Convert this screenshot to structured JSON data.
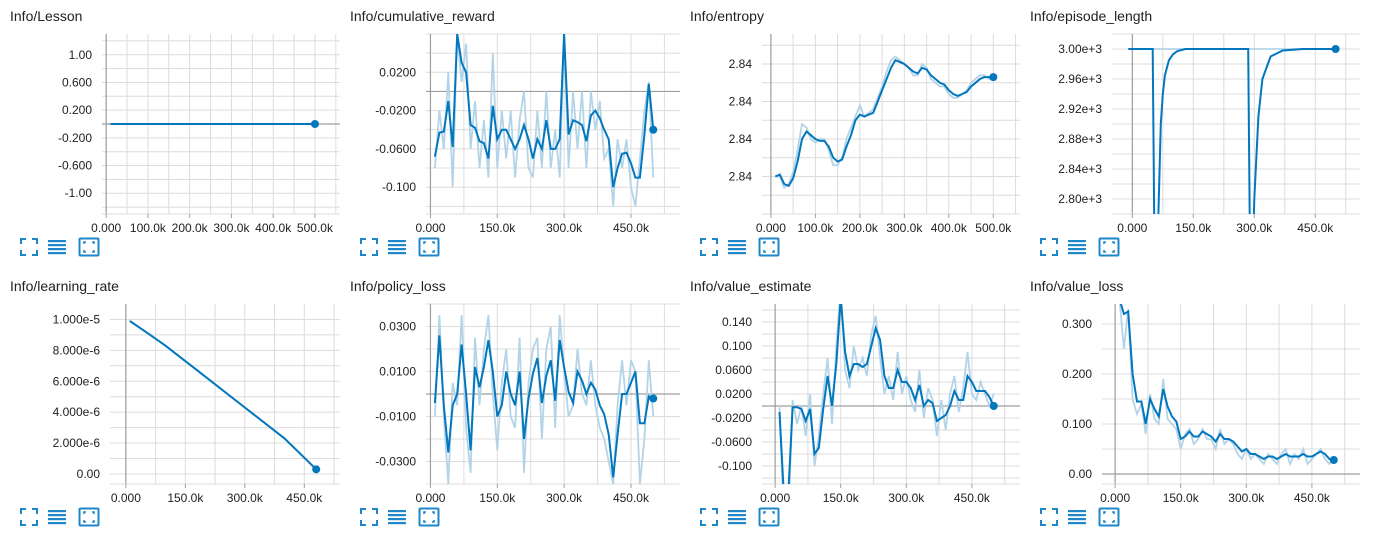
{
  "colors": {
    "line": "#0277bd",
    "raw": "#b3d4e8",
    "grid": "#dcdcdc",
    "axis": "#9e9e9e",
    "icon": "#1f87c9"
  },
  "toolbar_icons": [
    "fit-to-data-icon",
    "toggle-y-log-icon",
    "fullscreen-icon"
  ],
  "chart_data": [
    {
      "title": "Info/Lesson",
      "type": "line",
      "xlim": [
        -10000,
        560000
      ],
      "ylim": [
        -1.3,
        1.3
      ],
      "xticks": [
        0,
        100000,
        200000,
        300000,
        400000,
        500000
      ],
      "xtick_labels": [
        "0.000",
        "100.0k",
        "200.0k",
        "300.0k",
        "400.0k",
        "500.0k"
      ],
      "yticks": [
        1.0,
        0.6,
        0.2,
        -0.2,
        -0.6,
        -1.0
      ],
      "ytick_labels": [
        "1.00",
        "0.600",
        "0.200",
        "-0.200",
        "-0.600",
        "-1.00"
      ],
      "hline": 0,
      "x": [
        10000,
        100000,
        200000,
        300000,
        400000,
        500000
      ],
      "smoothed": [
        0,
        0,
        0,
        0,
        0,
        0
      ]
    },
    {
      "title": "Info/cumulative_reward",
      "type": "line",
      "xlim": [
        -10000,
        560000
      ],
      "ylim": [
        -0.128,
        0.06
      ],
      "xticks": [
        0,
        150000,
        300000,
        450000
      ],
      "xtick_labels": [
        "0.000",
        "150.0k",
        "300.0k",
        "450.0k"
      ],
      "yticks": [
        0.02,
        -0.02,
        -0.06,
        -0.1
      ],
      "ytick_labels": [
        "0.0200",
        "-0.0200",
        "-0.0600",
        "-0.100"
      ],
      "hline": 0,
      "x": [
        10000,
        20000,
        30000,
        40000,
        50000,
        60000,
        70000,
        80000,
        90000,
        100000,
        110000,
        120000,
        130000,
        140000,
        150000,
        160000,
        170000,
        180000,
        190000,
        200000,
        210000,
        220000,
        230000,
        240000,
        250000,
        260000,
        270000,
        280000,
        290000,
        300000,
        310000,
        320000,
        330000,
        340000,
        350000,
        360000,
        370000,
        380000,
        390000,
        400000,
        410000,
        420000,
        430000,
        440000,
        450000,
        460000,
        470000,
        480000,
        490000,
        500000
      ],
      "smoothed": [
        -0.068,
        -0.043,
        -0.042,
        -0.01,
        -0.058,
        0.06,
        0.03,
        0.02,
        -0.035,
        -0.038,
        -0.052,
        -0.054,
        -0.07,
        -0.015,
        -0.05,
        -0.04,
        -0.04,
        -0.05,
        -0.06,
        -0.05,
        -0.035,
        -0.05,
        -0.07,
        -0.05,
        -0.06,
        -0.03,
        -0.06,
        -0.06,
        -0.05,
        0.06,
        -0.045,
        -0.03,
        -0.032,
        -0.035,
        -0.052,
        -0.025,
        -0.02,
        -0.028,
        -0.04,
        -0.05,
        -0.1,
        -0.08,
        -0.065,
        -0.064,
        -0.075,
        -0.09,
        -0.09,
        -0.045,
        0.008,
        -0.04
      ],
      "raw": [
        -0.08,
        -0.02,
        -0.06,
        0.02,
        -0.1,
        0.06,
        0.01,
        0.05,
        -0.06,
        -0.01,
        -0.08,
        -0.03,
        -0.09,
        0.04,
        -0.08,
        -0.02,
        -0.07,
        -0.02,
        -0.09,
        -0.03,
        0.0,
        -0.08,
        -0.09,
        -0.02,
        -0.08,
        0.0,
        -0.08,
        -0.04,
        -0.09,
        0.06,
        -0.08,
        0.0,
        -0.06,
        0.0,
        -0.08,
        0.0,
        -0.04,
        -0.01,
        -0.07,
        -0.06,
        -0.12,
        -0.05,
        -0.08,
        -0.05,
        -0.1,
        -0.12,
        -0.07,
        -0.02,
        0.01,
        -0.09
      ],
      "markers": []
    },
    {
      "title": "Info/entropy",
      "type": "line",
      "xlim": [
        -20000,
        560000
      ],
      "ylim": [
        2.8388,
        2.8436
      ],
      "xticks": [
        0,
        100000,
        200000,
        300000,
        400000,
        500000
      ],
      "xtick_labels": [
        "0.000",
        "100.0k",
        "200.0k",
        "300.0k",
        "400.0k",
        "500.0k"
      ],
      "yticks": [
        2.8428,
        2.8418,
        2.8408,
        2.8398
      ],
      "ytick_labels": [
        "2.84",
        "2.84",
        "2.84",
        "2.84"
      ],
      "hline": null,
      "x": [
        10000,
        20000,
        30000,
        40000,
        50000,
        60000,
        70000,
        80000,
        90000,
        100000,
        110000,
        120000,
        130000,
        140000,
        150000,
        160000,
        170000,
        180000,
        190000,
        200000,
        210000,
        220000,
        230000,
        240000,
        250000,
        260000,
        270000,
        280000,
        290000,
        300000,
        310000,
        320000,
        330000,
        340000,
        350000,
        360000,
        370000,
        380000,
        390000,
        400000,
        410000,
        420000,
        430000,
        440000,
        450000,
        460000,
        470000,
        480000,
        490000,
        500000
      ],
      "smoothed": [
        2.8398,
        2.83985,
        2.8396,
        2.83955,
        2.83975,
        2.8402,
        2.8408,
        2.841,
        2.8409,
        2.8408,
        2.84075,
        2.84075,
        2.8406,
        2.8403,
        2.8402,
        2.84025,
        2.8406,
        2.8409,
        2.8413,
        2.84145,
        2.8414,
        2.84145,
        2.8415,
        2.8418,
        2.8421,
        2.8424,
        2.8427,
        2.8429,
        2.84285,
        2.8428,
        2.8427,
        2.8426,
        2.84255,
        2.8427,
        2.84265,
        2.8425,
        2.8424,
        2.8423,
        2.84225,
        2.8421,
        2.842,
        2.84195,
        2.842,
        2.84205,
        2.8422,
        2.8423,
        2.8424,
        2.84245,
        2.84245,
        2.84245
      ],
      "raw": [
        2.8398,
        2.8398,
        2.8395,
        2.8396,
        2.8399,
        2.8405,
        2.8412,
        2.8411,
        2.8408,
        2.8407,
        2.8408,
        2.8408,
        2.8405,
        2.8401,
        2.8401,
        2.8403,
        2.8408,
        2.8411,
        2.8414,
        2.8417,
        2.8414,
        2.8415,
        2.8416,
        2.8419,
        2.8422,
        2.8426,
        2.8429,
        2.843,
        2.8429,
        2.8428,
        2.8427,
        2.8425,
        2.8425,
        2.8428,
        2.8427,
        2.8424,
        2.8423,
        2.8422,
        2.8422,
        2.842,
        2.8419,
        2.8419,
        2.842,
        2.8421,
        2.8423,
        2.8424,
        2.8425,
        2.8425,
        2.8424,
        2.8424
      ],
      "markers": []
    },
    {
      "title": "Info/episode_length",
      "type": "line",
      "xlim": [
        -50000,
        560000
      ],
      "ylim": [
        2780,
        3020
      ],
      "xticks": [
        0,
        150000,
        300000,
        450000
      ],
      "xtick_labels": [
        "0.000",
        "150.0k",
        "300.0k",
        "450.0k"
      ],
      "yticks": [
        3000,
        2960,
        2920,
        2880,
        2840,
        2800
      ],
      "ytick_labels": [
        "3.00e+3",
        "2.96e+3",
        "2.92e+3",
        "2.88e+3",
        "2.84e+3",
        "2.80e+3"
      ],
      "hline": null,
      "x": [
        -10000,
        30000,
        50000,
        55000,
        60000,
        65000,
        70000,
        75000,
        80000,
        90000,
        100000,
        110000,
        130000,
        160000,
        200000,
        250000,
        280000,
        282000,
        285000,
        290000,
        295000,
        300000,
        310000,
        320000,
        340000,
        370000,
        420000,
        500000
      ],
      "smoothed": [
        3000,
        3000,
        3000,
        2700,
        2700,
        2800,
        2900,
        2940,
        2965,
        2985,
        2993,
        2997,
        3000,
        3000,
        3000,
        3000,
        3000,
        3000,
        3000,
        2700,
        2700,
        2800,
        2910,
        2960,
        2990,
        2998,
        3000,
        3000
      ],
      "raw": [
        3000,
        3000,
        3000,
        3000,
        3000,
        3000,
        3000,
        3000,
        3000,
        3000,
        3000,
        3000,
        3000,
        3000,
        3000,
        3000,
        3000,
        3000,
        3000,
        3000,
        3000,
        3000,
        3000,
        3000,
        3000,
        3000,
        3000,
        3000
      ],
      "markers": []
    },
    {
      "title": "Info/learning_rate",
      "type": "line",
      "xlim": [
        -40000,
        540000
      ],
      "ylim": [
        -6.5e-07,
        1.1e-05
      ],
      "xticks": [
        0,
        150000,
        300000,
        450000
      ],
      "xtick_labels": [
        "0.000",
        "150.0k",
        "300.0k",
        "450.0k"
      ],
      "yticks": [
        1e-05,
        8e-06,
        6e-06,
        4e-06,
        2e-06,
        0
      ],
      "ytick_labels": [
        "1.000e-5",
        "8.000e-6",
        "6.000e-6",
        "4.000e-6",
        "2.000e-6",
        "0.00"
      ],
      "hline": null,
      "x": [
        10000,
        50000,
        100000,
        200000,
        300000,
        400000,
        480000
      ],
      "smoothed": [
        9.9e-06,
        9.2e-06,
        8.3e-06,
        6.3e-06,
        4.3e-06,
        2.3e-06,
        3e-07
      ],
      "raw": [
        9.9e-06,
        9.2e-06,
        8.3e-06,
        6.3e-06,
        4.3e-06,
        2.3e-06,
        3e-07
      ],
      "markers": []
    },
    {
      "title": "Info/policy_loss",
      "type": "line",
      "xlim": [
        -10000,
        560000
      ],
      "ylim": [
        -0.04,
        0.04
      ],
      "xticks": [
        0,
        150000,
        300000,
        450000
      ],
      "xtick_labels": [
        "0.000",
        "150.0k",
        "300.0k",
        "450.0k"
      ],
      "yticks": [
        0.03,
        0.01,
        -0.01,
        -0.03
      ],
      "ytick_labels": [
        "0.0300",
        "0.0100",
        "-0.0100",
        "-0.0300"
      ],
      "hline": 0,
      "x": [
        10000,
        20000,
        30000,
        40000,
        50000,
        60000,
        70000,
        80000,
        90000,
        100000,
        110000,
        120000,
        130000,
        140000,
        150000,
        160000,
        170000,
        180000,
        190000,
        200000,
        210000,
        220000,
        230000,
        240000,
        250000,
        260000,
        270000,
        280000,
        290000,
        300000,
        310000,
        320000,
        330000,
        340000,
        350000,
        360000,
        370000,
        380000,
        390000,
        400000,
        410000,
        420000,
        430000,
        440000,
        450000,
        460000,
        470000,
        480000,
        490000,
        500000
      ],
      "smoothed": [
        -0.004,
        0.026,
        -0.005,
        -0.026,
        -0.005,
        0.0,
        0.022,
        0.0,
        -0.025,
        0.012,
        0.003,
        0.012,
        0.024,
        0.01,
        -0.01,
        -0.005,
        0.01,
        0.0,
        -0.005,
        0.01,
        -0.02,
        -0.002,
        0.009,
        0.016,
        -0.004,
        0.008,
        0.015,
        -0.003,
        0.024,
        0.012,
        0.001,
        -0.004,
        0.01,
        0.006,
        0.0,
        0.005,
        0.002,
        -0.005,
        -0.009,
        -0.018,
        -0.037,
        -0.018,
        0.0,
        0.0,
        0.005,
        0.01,
        -0.013,
        -0.013,
        -0.001,
        -0.002
      ],
      "raw": [
        -0.01,
        0.035,
        -0.01,
        -0.04,
        0.005,
        -0.005,
        0.035,
        -0.015,
        -0.035,
        0.025,
        -0.005,
        0.02,
        0.035,
        0.0,
        -0.025,
        0.005,
        0.02,
        -0.01,
        -0.015,
        0.025,
        -0.035,
        0.005,
        0.02,
        0.025,
        -0.02,
        0.02,
        0.03,
        -0.015,
        0.035,
        0.01,
        -0.01,
        -0.005,
        0.02,
        0.0,
        -0.005,
        0.015,
        -0.005,
        -0.015,
        -0.02,
        -0.03,
        -0.04,
        -0.005,
        0.015,
        -0.005,
        0.015,
        0.01,
        -0.04,
        -0.02,
        0.015,
        -0.01
      ],
      "markers": []
    },
    {
      "title": "Info/value_estimate",
      "type": "line",
      "xlim": [
        -30000,
        560000
      ],
      "ylim": [
        -0.13,
        0.17
      ],
      "xticks": [
        0,
        150000,
        300000,
        450000
      ],
      "xtick_labels": [
        "0.000",
        "150.0k",
        "300.0k",
        "450.0k"
      ],
      "yticks": [
        0.14,
        0.1,
        0.06,
        0.02,
        -0.02,
        -0.06,
        -0.1
      ],
      "ytick_labels": [
        "0.140",
        "0.100",
        "0.0600",
        "0.0200",
        "-0.0200",
        "-0.0600",
        "-0.100"
      ],
      "hline": 0,
      "x": [
        10000,
        20000,
        30000,
        40000,
        50000,
        60000,
        70000,
        80000,
        90000,
        100000,
        110000,
        120000,
        130000,
        140000,
        150000,
        160000,
        170000,
        180000,
        190000,
        200000,
        210000,
        220000,
        230000,
        240000,
        250000,
        260000,
        270000,
        280000,
        290000,
        300000,
        310000,
        320000,
        330000,
        340000,
        350000,
        360000,
        370000,
        380000,
        390000,
        400000,
        410000,
        420000,
        430000,
        440000,
        450000,
        460000,
        470000,
        480000,
        490000,
        500000
      ],
      "smoothed": [
        -0.01,
        -0.15,
        -0.15,
        -0.002,
        -0.002,
        -0.005,
        -0.025,
        -0.005,
        -0.08,
        -0.07,
        -0.005,
        0.05,
        0.0,
        0.07,
        0.18,
        0.09,
        0.05,
        0.07,
        0.07,
        0.065,
        0.07,
        0.1,
        0.13,
        0.11,
        0.05,
        0.03,
        0.03,
        0.06,
        0.04,
        0.04,
        0.03,
        0.01,
        0.035,
        0.0,
        0.01,
        0.005,
        -0.025,
        -0.02,
        -0.015,
        0.0,
        0.025,
        0.01,
        0.01,
        0.05,
        0.04,
        0.025,
        0.025,
        0.025,
        0.015,
        0.0
      ],
      "raw": [
        0.0,
        -0.2,
        -0.2,
        0.01,
        -0.03,
        0.0,
        -0.05,
        0.02,
        -0.1,
        -0.05,
        0.02,
        0.08,
        -0.03,
        0.1,
        0.2,
        0.06,
        0.03,
        0.1,
        0.06,
        0.08,
        0.05,
        0.12,
        0.15,
        0.08,
        0.02,
        0.05,
        0.01,
        0.09,
        0.02,
        0.05,
        0.01,
        -0.01,
        0.06,
        -0.02,
        0.03,
        0.01,
        -0.05,
        0.01,
        -0.04,
        0.02,
        0.05,
        -0.01,
        0.03,
        0.09,
        0.02,
        0.01,
        0.04,
        0.02,
        0.0,
        0.02
      ],
      "markers": []
    },
    {
      "title": "Info/value_loss",
      "type": "line",
      "xlim": [
        -30000,
        560000
      ],
      "ylim": [
        -0.02,
        0.34
      ],
      "xticks": [
        0,
        150000,
        300000,
        450000
      ],
      "xtick_labels": [
        "0.000",
        "150.0k",
        "300.0k",
        "450.0k"
      ],
      "yticks": [
        0.3,
        0.2,
        0.1,
        0.0
      ],
      "ytick_labels": [
        "0.300",
        "0.200",
        "0.100",
        "0.00"
      ],
      "hline": 0,
      "x": [
        10000,
        20000,
        30000,
        40000,
        50000,
        60000,
        70000,
        80000,
        90000,
        100000,
        110000,
        120000,
        130000,
        140000,
        150000,
        160000,
        170000,
        180000,
        190000,
        200000,
        210000,
        220000,
        230000,
        240000,
        250000,
        260000,
        270000,
        280000,
        290000,
        300000,
        310000,
        320000,
        330000,
        340000,
        350000,
        360000,
        370000,
        380000,
        390000,
        400000,
        410000,
        420000,
        430000,
        440000,
        450000,
        460000,
        470000,
        480000,
        490000,
        500000
      ],
      "smoothed": [
        0.35,
        0.32,
        0.325,
        0.2,
        0.145,
        0.145,
        0.1,
        0.15,
        0.13,
        0.115,
        0.17,
        0.135,
        0.115,
        0.105,
        0.07,
        0.075,
        0.085,
        0.075,
        0.075,
        0.085,
        0.08,
        0.075,
        0.065,
        0.08,
        0.07,
        0.07,
        0.065,
        0.055,
        0.045,
        0.05,
        0.04,
        0.04,
        0.035,
        0.03,
        0.035,
        0.035,
        0.03,
        0.035,
        0.04,
        0.035,
        0.035,
        0.035,
        0.04,
        0.035,
        0.035,
        0.04,
        0.045,
        0.04,
        0.03,
        0.028
      ],
      "raw": [
        0.35,
        0.25,
        0.33,
        0.15,
        0.12,
        0.14,
        0.08,
        0.16,
        0.11,
        0.1,
        0.19,
        0.11,
        0.1,
        0.09,
        0.05,
        0.08,
        0.09,
        0.06,
        0.07,
        0.09,
        0.07,
        0.07,
        0.05,
        0.09,
        0.06,
        0.07,
        0.06,
        0.04,
        0.03,
        0.05,
        0.03,
        0.04,
        0.03,
        0.02,
        0.04,
        0.03,
        0.02,
        0.04,
        0.05,
        0.02,
        0.04,
        0.03,
        0.05,
        0.02,
        0.03,
        0.04,
        0.05,
        0.03,
        0.02,
        0.03
      ],
      "markers": []
    }
  ]
}
